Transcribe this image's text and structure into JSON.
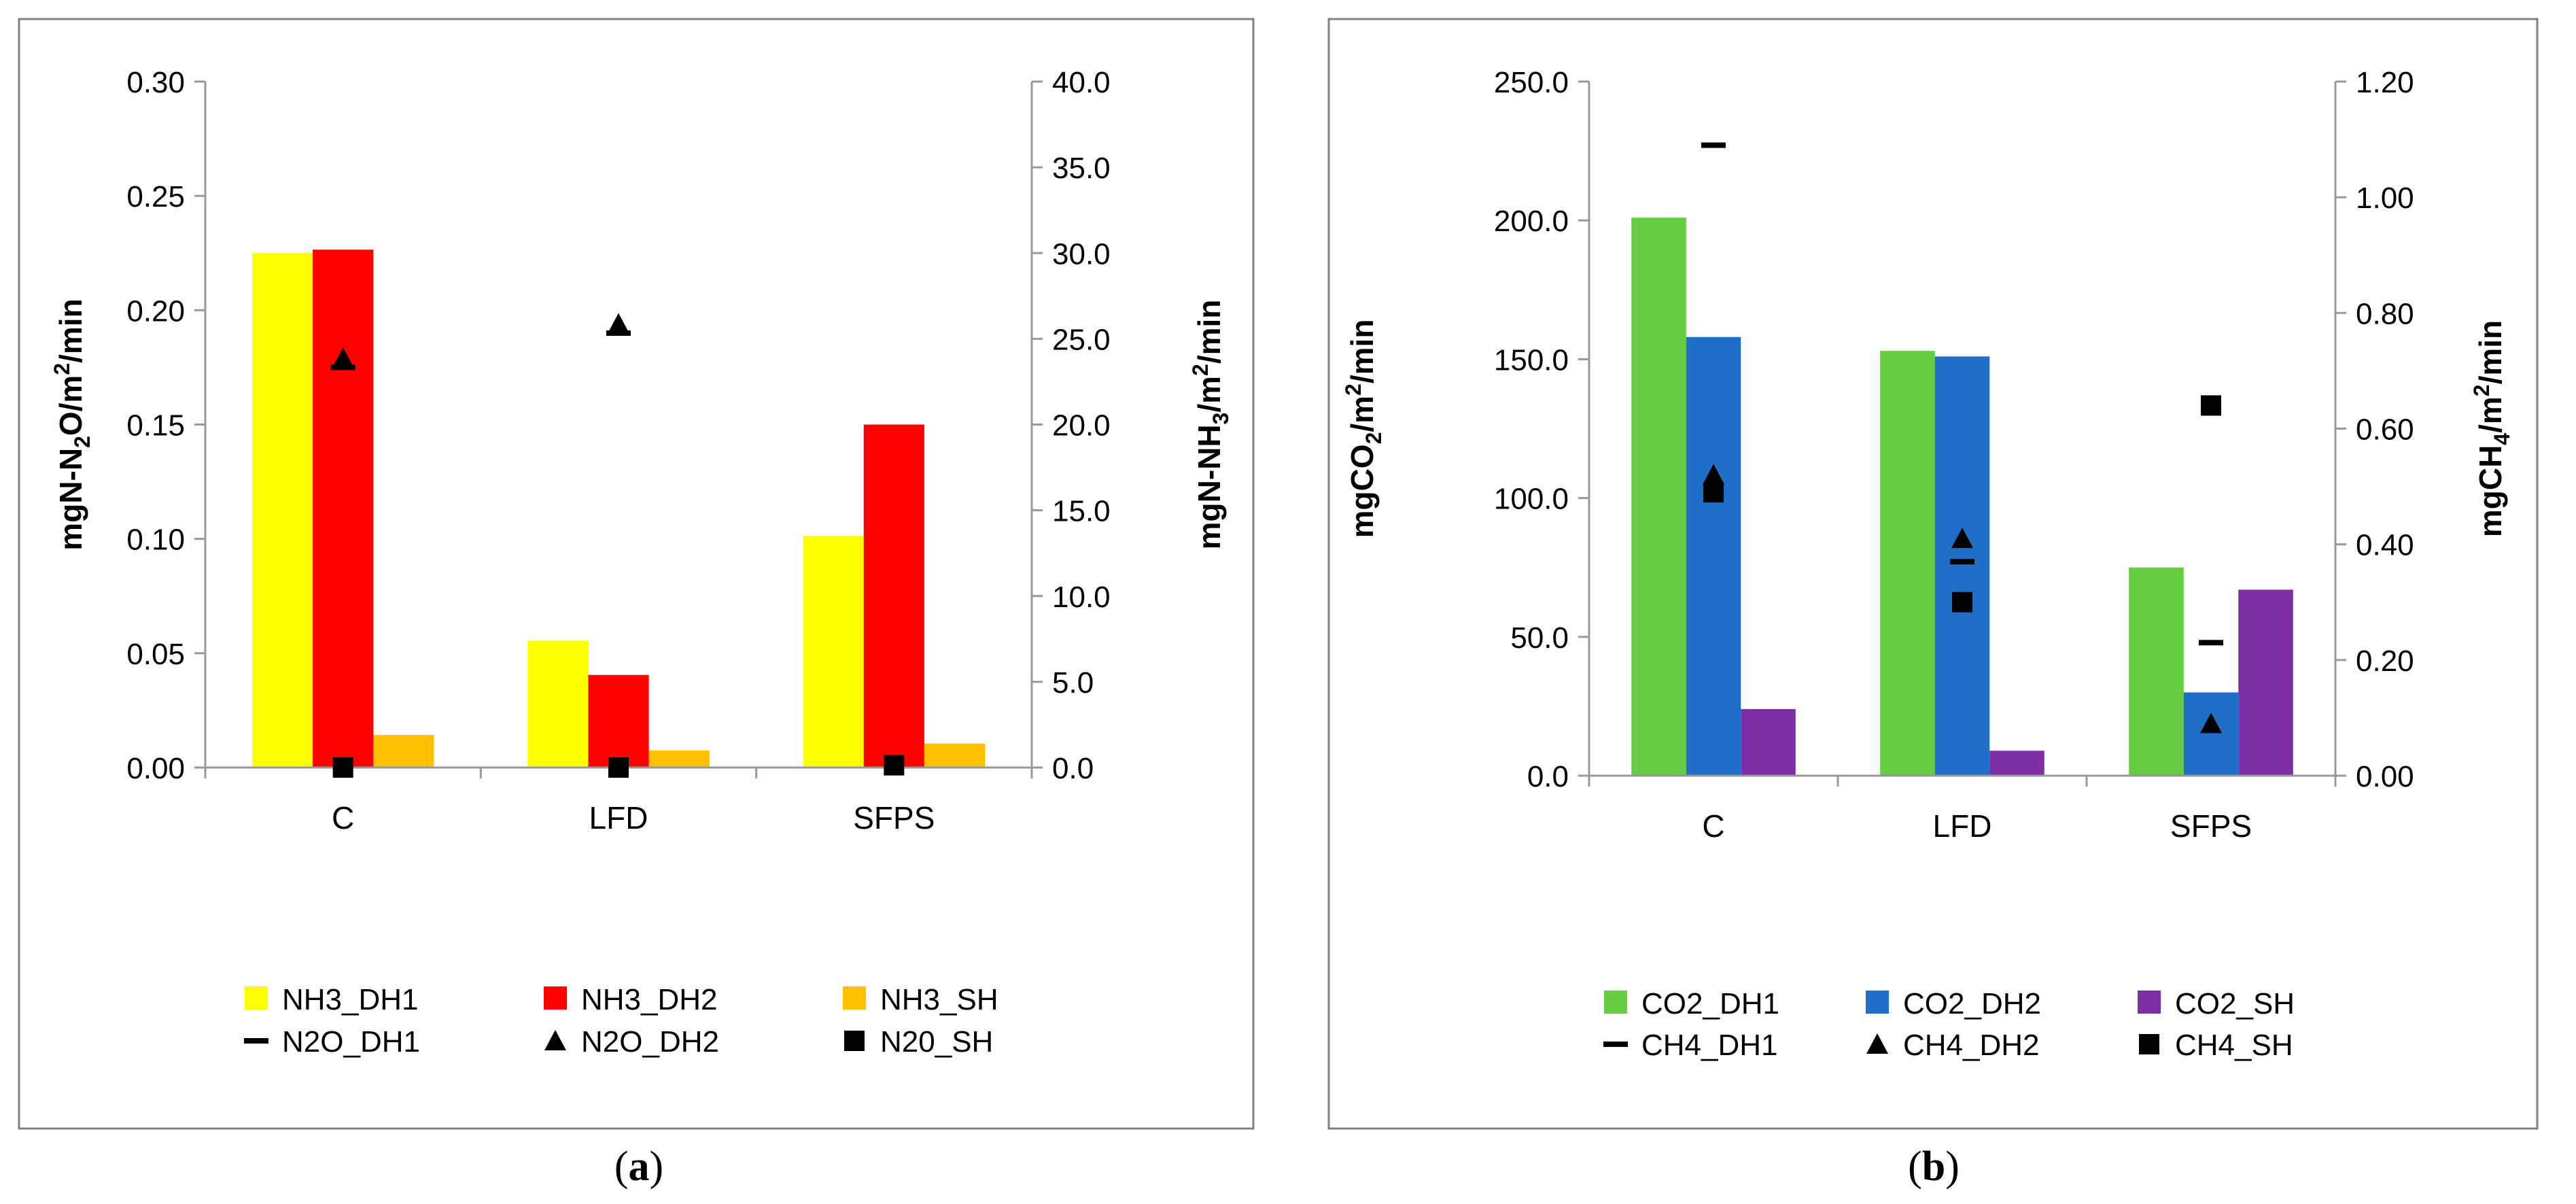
{
  "chart_data": [
    {
      "type": "bar",
      "panel_label": "(a)",
      "panel_letter": "a",
      "categories": [
        "C",
        "LFD",
        "SFPS"
      ],
      "bar_axis": "right",
      "marker_axis": "left",
      "left_axis": {
        "label_parts": [
          "mgN-N",
          "2",
          "O/m",
          "2",
          "/min"
        ],
        "min": 0,
        "max": 0.3,
        "step": 0.05,
        "decimals": 2,
        "ticks": [
          "0.00",
          "0.05",
          "0.10",
          "0.15",
          "0.20",
          "0.25",
          "0.30"
        ]
      },
      "right_axis": {
        "label_parts": [
          "mgN-NH",
          "3",
          "/m",
          "2",
          "/min"
        ],
        "min": 0,
        "max": 40,
        "step": 5,
        "decimals": 1,
        "ticks": [
          "0.0",
          "5.0",
          "10.0",
          "15.0",
          "20.0",
          "25.0",
          "30.0",
          "35.0",
          "40.0"
        ]
      },
      "bars": [
        {
          "name": "NH3_DH1",
          "color": "#FFFF00",
          "values": [
            30.0,
            7.4,
            13.5
          ]
        },
        {
          "name": "NH3_DH2",
          "color": "#FF0000",
          "values": [
            30.2,
            5.4,
            20.0
          ]
        },
        {
          "name": "NH3_SH",
          "color": "#FFC000",
          "values": [
            1.9,
            1.0,
            1.4
          ]
        }
      ],
      "markers": [
        {
          "name": "N2O_DH1",
          "symbol": "dash",
          "color": "#000000",
          "values": [
            0.175,
            0.19,
            null
          ]
        },
        {
          "name": "N2O_DH2",
          "symbol": "triangle",
          "color": "#000000",
          "values": [
            0.179,
            0.194,
            null
          ]
        },
        {
          "name": "N20_SH",
          "symbol": "square",
          "color": "#000000",
          "values": [
            0.0,
            0.0,
            0.001
          ]
        }
      ],
      "legend_position": "bottom"
    },
    {
      "type": "bar",
      "panel_label": "(b)",
      "panel_letter": "b",
      "categories": [
        "C",
        "LFD",
        "SFPS"
      ],
      "bar_axis": "left",
      "marker_axis": "right",
      "left_axis": {
        "label_parts": [
          "mgCO",
          "2",
          "/m",
          "2",
          "/min"
        ],
        "min": 0,
        "max": 250,
        "step": 50,
        "decimals": 1,
        "ticks": [
          "0.0",
          "50.0",
          "100.0",
          "150.0",
          "200.0",
          "250.0"
        ]
      },
      "right_axis": {
        "label_parts": [
          "mgCH",
          "4",
          "/m",
          "2",
          "/min"
        ],
        "min": 0,
        "max": 1.2,
        "step": 0.2,
        "decimals": 2,
        "ticks": [
          "0.00",
          "0.20",
          "0.40",
          "0.60",
          "0.80",
          "1.00",
          "1.20"
        ]
      },
      "bars": [
        {
          "name": "CO2_DH1",
          "color": "#66CC44",
          "values": [
            201.0,
            153.0,
            75.0
          ]
        },
        {
          "name": "CO2_DH2",
          "color": "#1F6FC8",
          "values": [
            158.0,
            151.0,
            30.0
          ]
        },
        {
          "name": "CO2_SH",
          "color": "#7F2FA5",
          "values": [
            24.0,
            9.0,
            67.0
          ]
        }
      ],
      "markers": [
        {
          "name": "CH4_DH1",
          "symbol": "dash",
          "color": "#000000",
          "values": [
            1.09,
            0.37,
            0.23
          ]
        },
        {
          "name": "CH4_DH2",
          "symbol": "triangle",
          "color": "#000000",
          "values": [
            0.52,
            0.41,
            0.09
          ]
        },
        {
          "name": "CH4_SH",
          "symbol": "square",
          "color": "#000000",
          "values": [
            0.49,
            0.3,
            0.64
          ]
        }
      ],
      "legend_position": "bottom"
    }
  ]
}
